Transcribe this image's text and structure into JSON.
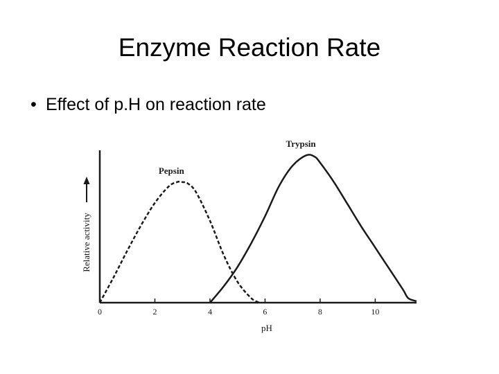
{
  "slide": {
    "title": "Enzyme Reaction Rate",
    "bullet": "Effect of p.H on reaction rate",
    "bullet_marker": "•"
  },
  "chart_data": {
    "type": "line",
    "xlabel": "pH",
    "ylabel": "Relative activity",
    "xlim": [
      0,
      11.5
    ],
    "ylim": [
      0,
      1
    ],
    "x_ticks": [
      0,
      2,
      4,
      6,
      8,
      10
    ],
    "x_tick_labels": [
      "0",
      "2",
      "4",
      "6",
      "8",
      "10"
    ],
    "grid": false,
    "series": [
      {
        "name": "Pepsin",
        "style": "dashed",
        "color": "#1a1a1a",
        "x": [
          0,
          0.5,
          1.0,
          1.5,
          2.0,
          2.5,
          2.8,
          3.0,
          3.2,
          3.5,
          4.0,
          4.5,
          5.0,
          5.5,
          5.8
        ],
        "y": [
          0.0,
          0.17,
          0.35,
          0.52,
          0.67,
          0.78,
          0.81,
          0.81,
          0.8,
          0.74,
          0.55,
          0.32,
          0.14,
          0.03,
          0.0
        ]
      },
      {
        "name": "Trypsin",
        "style": "solid",
        "color": "#1a1a1a",
        "x": [
          4.0,
          4.5,
          5.0,
          5.5,
          6.0,
          6.5,
          7.0,
          7.5,
          7.8,
          8.0,
          8.5,
          9.0,
          9.5,
          10.0,
          10.5,
          11.0,
          11.2,
          11.5
        ],
        "y": [
          0.0,
          0.11,
          0.24,
          0.4,
          0.58,
          0.78,
          0.92,
          0.99,
          0.98,
          0.94,
          0.81,
          0.66,
          0.51,
          0.37,
          0.23,
          0.09,
          0.03,
          0.01
        ]
      }
    ],
    "annotations": {
      "arrow": "up-arrow-beside-y-label"
    }
  }
}
